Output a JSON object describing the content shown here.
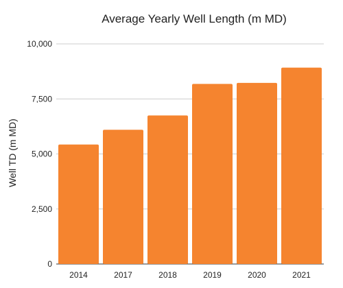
{
  "chart_data": {
    "type": "bar",
    "title": "Average Yearly Well Length (m MD)",
    "xlabel": "",
    "ylabel": "Well TD (m MD)",
    "categories": [
      "2014",
      "2017",
      "2018",
      "2019",
      "2020",
      "2021"
    ],
    "series": [
      {
        "values": [
          5430,
          6100,
          6750,
          8180,
          8230,
          8920
        ],
        "color": "#F5842F"
      }
    ],
    "ylim": [
      0,
      10000
    ],
    "yticks": [
      0,
      2500,
      5000,
      7500,
      10000
    ],
    "ytick_labels": [
      "0",
      "2,500",
      "5,000",
      "7,500",
      "10,000"
    ],
    "grid": true,
    "legend": "none"
  }
}
